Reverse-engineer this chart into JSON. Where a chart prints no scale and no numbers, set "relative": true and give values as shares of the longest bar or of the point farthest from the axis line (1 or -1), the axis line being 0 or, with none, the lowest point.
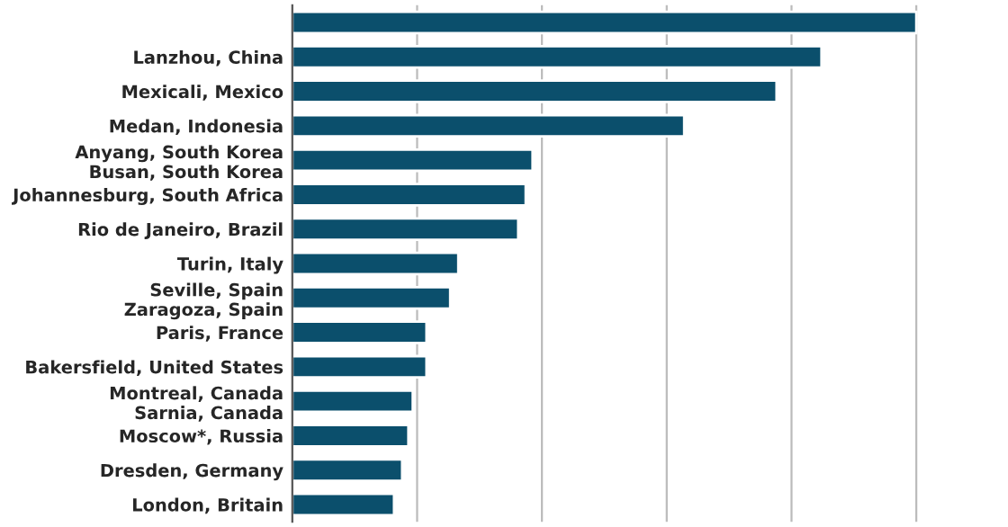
{
  "chart_data": {
    "type": "bar",
    "orientation": "horizontal",
    "relative": true,
    "grid": "x",
    "categories": [
      null,
      "Lanzhou, China",
      "Mexicali, Mexico",
      "Medan, Indonesia",
      "Anyang, South Korea\nBusan, South Korea",
      "Johannesburg, South Africa",
      "Rio de Janeiro, Brazil",
      "Turin, Italy",
      "Seville, Spain\nZaragoza, Spain",
      "Paris, France",
      "Bakersfield, United States",
      "Montreal, Canada\nSarnia, Canada",
      "Moscow*, Russia",
      "Dresden, Germany",
      "London, Britain"
    ],
    "values": [
      1,
      0.848,
      0.776,
      0.628,
      0.385,
      0.374,
      0.362,
      0.266,
      0.253,
      0.215,
      0.215,
      0.193,
      0.186,
      0.176,
      0.163
    ],
    "color": "#0b4f6c"
  }
}
